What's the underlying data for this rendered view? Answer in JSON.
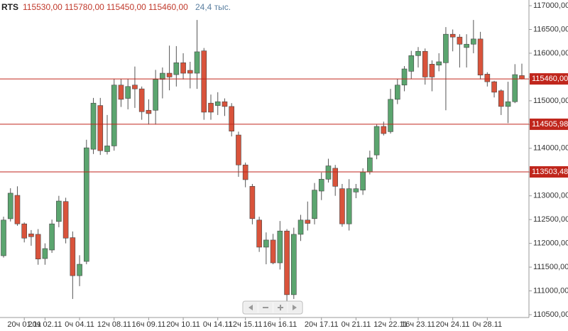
{
  "chart_data": {
    "type": "candlestick",
    "legend": {
      "symbol": "RTS",
      "ohlc": [
        "115530,00",
        "115780,00",
        "115450,00",
        "115460,00"
      ],
      "volume": "24,4 тыс."
    },
    "up_color": "#5ba56f",
    "down_color": "#d9533b",
    "categories": [
      null,
      null,
      null,
      "20ч 01.11",
      null,
      null,
      "20ч 02.11",
      null,
      null,
      null,
      null,
      "0ч 04.11",
      null,
      null,
      null,
      null,
      "12ч 08.11",
      null,
      null,
      null,
      null,
      "16ч 09.11",
      null,
      null,
      null,
      null,
      "20ч 10.11",
      null,
      null,
      null,
      null,
      "0ч 14.11",
      null,
      null,
      null,
      "12ч 15.11",
      null,
      null,
      null,
      null,
      "16ч 16.11",
      null,
      null,
      null,
      null,
      null,
      "20ч 17.11",
      null,
      null,
      null,
      null,
      "0ч 21.11",
      null,
      null,
      null,
      null,
      "12ч 22.11",
      null,
      null,
      null,
      "16ч 23.11",
      null,
      null,
      null,
      null,
      "20ч 24.11",
      null,
      null,
      null,
      null,
      "0ч 28.11",
      null,
      null,
      null,
      null,
      null
    ],
    "open": [
      111740,
      112518,
      113010,
      112410,
      112200,
      112190,
      111680,
      111860,
      112460,
      112880,
      112120,
      111320,
      111620,
      113980,
      114900,
      113930,
      114050,
      115330,
      115050,
      115330,
      115250,
      114800,
      114800,
      115450,
      115580,
      115550,
      115800,
      115640,
      115580,
      116050,
      114950,
      114900,
      114980,
      114880,
      114280,
      113650,
      113200,
      112490,
      111920,
      112070,
      111590,
      112260,
      110920,
      112190,
      112490,
      112520,
      113100,
      113350,
      113580,
      113150,
      112410,
      113080,
      113120,
      113500,
      113860,
      114460,
      114350,
      115030,
      115330,
      115620,
      115950,
      116040,
      115770,
      115750,
      115800,
      116400,
      116340,
      116120,
      116190,
      116300,
      115560,
      115400,
      115210,
      114880,
      114980,
      115530
    ],
    "high": [
      112560,
      113160,
      113200,
      112440,
      112280,
      112300,
      112000,
      112500,
      113000,
      112960,
      112250,
      111750,
      114180,
      115060,
      115060,
      114700,
      115460,
      115460,
      115460,
      115720,
      115300,
      115030,
      115650,
      115700,
      116160,
      116150,
      116000,
      115820,
      116700,
      116110,
      115130,
      115180,
      115050,
      114950,
      114350,
      113700,
      113250,
      112560,
      112230,
      112200,
      112470,
      112300,
      112330,
      112600,
      112880,
      113270,
      113490,
      113780,
      113650,
      113250,
      113350,
      113250,
      113580,
      113950,
      114500,
      114560,
      115250,
      115460,
      115730,
      116050,
      116130,
      116100,
      115850,
      116000,
      116550,
      116500,
      116400,
      116400,
      116700,
      116450,
      115600,
      115420,
      115240,
      115400,
      115770,
      115780
    ],
    "low": [
      111700,
      112460,
      112370,
      112020,
      111950,
      111550,
      111550,
      111800,
      112340,
      112000,
      110830,
      111100,
      111560,
      113880,
      113860,
      113870,
      113950,
      114870,
      114820,
      114850,
      114600,
      114500,
      114500,
      115050,
      115220,
      115300,
      115450,
      115260,
      115250,
      114600,
      114600,
      114700,
      114680,
      114250,
      113400,
      113180,
      112400,
      111820,
      111560,
      111560,
      111450,
      110750,
      110830,
      112050,
      112270,
      112400,
      112910,
      113280,
      113000,
      112350,
      112270,
      112950,
      113020,
      113450,
      113770,
      114270,
      114310,
      114930,
      115200,
      115460,
      115700,
      115340,
      115200,
      115620,
      114800,
      116040,
      115700,
      115700,
      116000,
      115450,
      115300,
      115070,
      114700,
      114530,
      114950,
      115450
    ],
    "close": [
      112490,
      113056,
      112410,
      112110,
      112140,
      111670,
      111890,
      112410,
      112890,
      112110,
      111320,
      111560,
      114010,
      114950,
      113950,
      114050,
      115330,
      115030,
      115300,
      115250,
      114770,
      114730,
      115450,
      115580,
      115500,
      115800,
      115580,
      115580,
      116030,
      114760,
      114760,
      114980,
      114880,
      114360,
      113650,
      113340,
      112520,
      111920,
      112070,
      111590,
      112260,
      110920,
      112190,
      112490,
      112420,
      113120,
      113350,
      113630,
      113200,
      112410,
      113150,
      113150,
      113500,
      113800,
      114460,
      114310,
      115030,
      115330,
      115670,
      115950,
      116040,
      115500,
      115500,
      115820,
      116400,
      116340,
      116190,
      116190,
      116300,
      115540,
      115400,
      115180,
      114880,
      114980,
      115550,
      115460
    ],
    "levels": [
      {
        "value": 115460,
        "label": "115460,00"
      },
      {
        "value": 114505.98,
        "label": "114505,98"
      },
      {
        "value": 113503.48,
        "label": "113503,48"
      }
    ],
    "level_color": "#c0261c",
    "ylim": [
      110440,
      117120
    ],
    "yticks": [
      {
        "value": 110500,
        "label": "110500,00"
      },
      {
        "value": 111000,
        "label": "111000,00"
      },
      {
        "value": 111500,
        "label": "111500,00"
      },
      {
        "value": 112000,
        "label": "112000,00"
      },
      {
        "value": 112500,
        "label": "112500,00"
      },
      {
        "value": 113000,
        "label": "113000,00"
      },
      {
        "value": 113500,
        "label": "113500,00"
      },
      {
        "value": 114000,
        "label": "114000,00"
      },
      {
        "value": 114500,
        "label": "114500,00"
      },
      {
        "value": 115000,
        "label": "115000,00"
      },
      {
        "value": 115500,
        "label": "115500,00"
      },
      {
        "value": 116000,
        "label": "116000,00"
      },
      {
        "value": 116500,
        "label": "116500,00"
      },
      {
        "value": 117000,
        "label": "117000,00"
      }
    ]
  }
}
